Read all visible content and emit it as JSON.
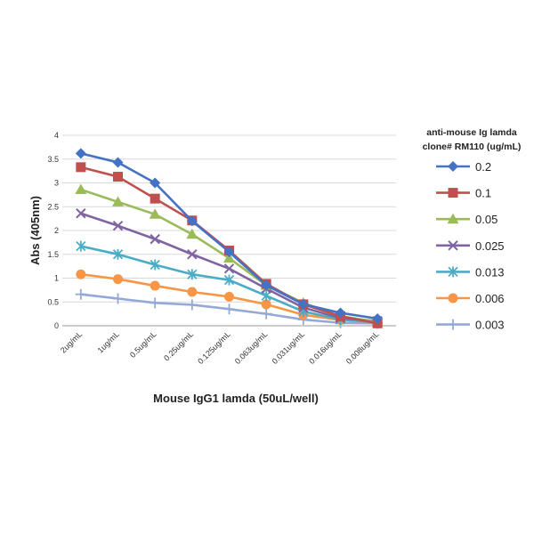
{
  "chart_data": {
    "type": "line",
    "title": "",
    "xlabel": "Mouse IgG1 lamda (50uL/well)",
    "ylabel": "Abs (405nm)",
    "ylim": [
      0,
      4
    ],
    "yticks": [
      "0",
      "0.5",
      "1",
      "1.5",
      "2",
      "2.5",
      "3",
      "3.5",
      "4"
    ],
    "grid": true,
    "legend_position": "right",
    "legend_title": [
      "anti-mouse Ig lamda",
      "clone# RM110 (ug/mL)"
    ],
    "categories": [
      "2ug/mL",
      "1ug/mL",
      "0.5ug/mL",
      "0.25ug/mL",
      "0.125ug/mL",
      "0.063ug/mL",
      "0.031ug/mL",
      "0.016ug/mL",
      "0.008ug/mL"
    ],
    "series": [
      {
        "name": "0.2",
        "color": "#4472C4",
        "marker": "diamond",
        "values": [
          3.62,
          3.43,
          3.0,
          2.2,
          1.55,
          0.85,
          0.45,
          0.27,
          0.15
        ]
      },
      {
        "name": "0.1",
        "color": "#C0504D",
        "marker": "square",
        "values": [
          3.33,
          3.13,
          2.67,
          2.21,
          1.58,
          0.88,
          0.45,
          0.2,
          0.05
        ]
      },
      {
        "name": "0.05",
        "color": "#9BBB59",
        "marker": "triangle",
        "values": [
          2.86,
          2.6,
          2.34,
          1.92,
          1.42,
          0.85,
          0.48,
          0.2,
          0.08
        ]
      },
      {
        "name": "0.025",
        "color": "#8064A2",
        "marker": "x",
        "values": [
          2.36,
          2.1,
          1.82,
          1.5,
          1.2,
          0.78,
          0.38,
          0.16,
          0.1
        ]
      },
      {
        "name": "0.013",
        "color": "#4BACC6",
        "marker": "star",
        "values": [
          1.67,
          1.5,
          1.28,
          1.08,
          0.96,
          0.63,
          0.3,
          0.13,
          0.07
        ]
      },
      {
        "name": "0.006",
        "color": "#F79646",
        "marker": "circle",
        "values": [
          1.08,
          0.98,
          0.84,
          0.71,
          0.61,
          0.45,
          0.23,
          0.12,
          0.07
        ]
      },
      {
        "name": "0.003",
        "color": "#94A9D8",
        "marker": "plus",
        "values": [
          0.66,
          0.57,
          0.48,
          0.44,
          0.35,
          0.25,
          0.13,
          0.06,
          0.05
        ]
      }
    ]
  }
}
